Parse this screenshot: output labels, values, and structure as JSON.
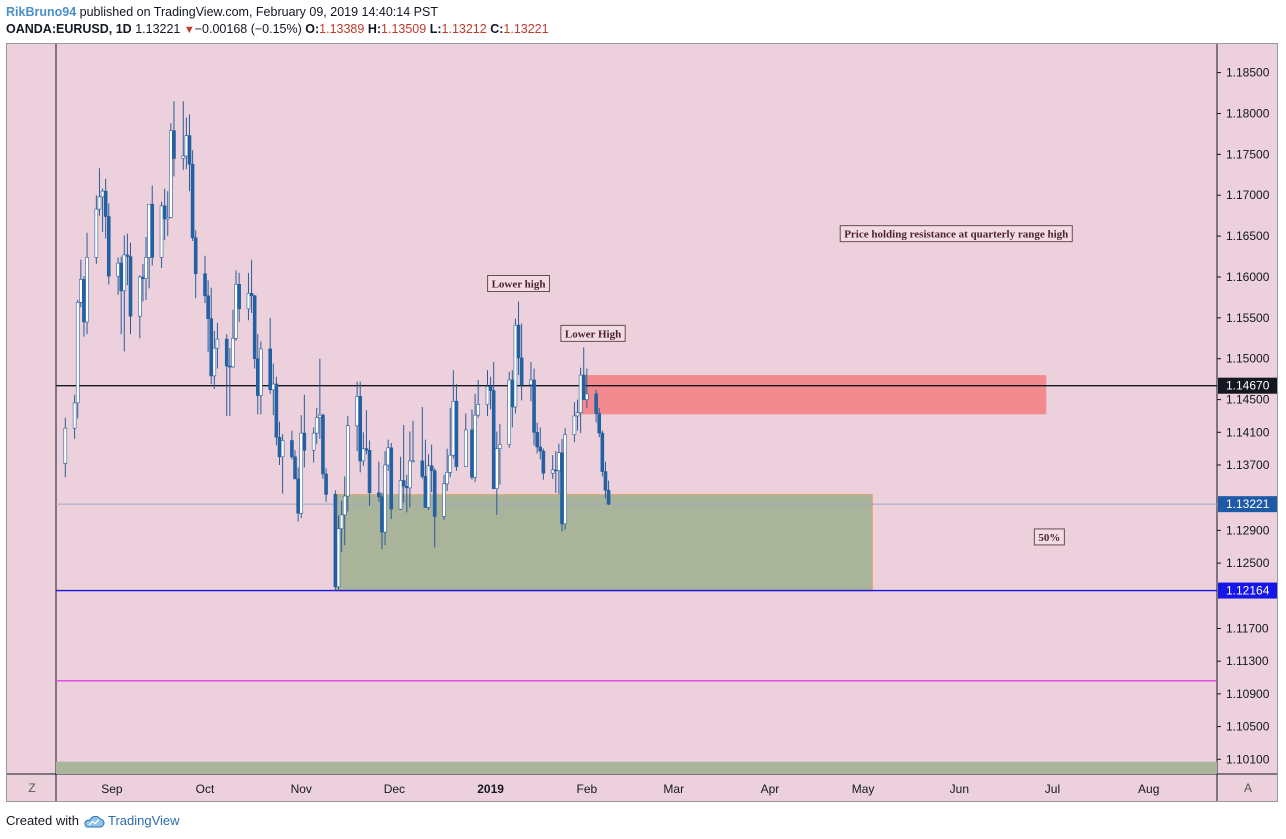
{
  "header": {
    "user": "RikBruno94",
    "published": "published on TradingView.com, February 09, 2019 14:40:14 PST",
    "symbol": "OANDA:EURUSD, 1D",
    "last": "1.13221",
    "change": "−0.00168 (−0.15%)",
    "open_label": "O:",
    "open": "1.13389",
    "high_label": "H:",
    "high": "1.13509",
    "low_label": "L:",
    "low": "1.13212",
    "close_label": "C:",
    "close": "1.13221"
  },
  "footer": {
    "created_with": "Created with",
    "brand": "TradingView"
  },
  "buttons": {
    "z": "Z",
    "a": "A"
  },
  "colors": {
    "background": "#ecd1dc",
    "up_candle": "#ffffff",
    "down_candle": "#1f62a8",
    "wick": "#2a5d98",
    "resistance_zone": "#f28b8f",
    "range_zone": "#a9b49a",
    "blue_line": "#1616e8",
    "magenta_line": "#e040e0"
  },
  "chart_data": {
    "type": "candlestick",
    "x_axis_labels": [
      {
        "label": "Sep",
        "date": "2018-09-01"
      },
      {
        "label": "Oct",
        "date": "2018-10-01"
      },
      {
        "label": "Nov",
        "date": "2018-11-01"
      },
      {
        "label": "Dec",
        "date": "2018-12-01"
      },
      {
        "label": "2019",
        "date": "2019-01-01",
        "bold": true
      },
      {
        "label": "Feb",
        "date": "2019-02-01"
      },
      {
        "label": "Mar",
        "date": "2019-03-01"
      },
      {
        "label": "Apr",
        "date": "2019-04-01"
      },
      {
        "label": "May",
        "date": "2019-05-01"
      },
      {
        "label": "Jun",
        "date": "2019-06-01"
      },
      {
        "label": "Jul",
        "date": "2019-07-01"
      },
      {
        "label": "Aug",
        "date": "2019-08-01"
      }
    ],
    "x_range": [
      "2018-08-14",
      "2019-08-23"
    ],
    "y_range": [
      1.0992,
      1.1885
    ],
    "y_ticks": [
      "1.18500",
      "1.18000",
      "1.17500",
      "1.17000",
      "1.16500",
      "1.16000",
      "1.15500",
      "1.15000",
      "1.14500",
      "1.14100",
      "1.13700",
      "1.12900",
      "1.12500",
      "1.11700",
      "1.11300",
      "1.10900",
      "1.10500",
      "1.10100"
    ],
    "price_markers": [
      {
        "value": 1.1467,
        "label": "1.14670",
        "bg": "#131722",
        "fg": "#ffffff"
      },
      {
        "value": 1.13221,
        "label": "1.13221",
        "bg": "#1f5aa6",
        "fg": "#ffffff"
      },
      {
        "value": 1.12164,
        "label": "1.12164",
        "bg": "#1616e8",
        "fg": "#ffffff"
      }
    ],
    "horizontal_lines": [
      {
        "value": 1.1467,
        "color": "#131722"
      },
      {
        "value": 1.13221,
        "color": "#9fa6c4"
      },
      {
        "value": 1.12164,
        "color": "#1616e8"
      },
      {
        "value": 1.1106,
        "color": "#e040e0"
      }
    ],
    "zones": [
      {
        "from": "2019-01-30",
        "to": "2019-06-29",
        "top": 1.148,
        "bottom": 1.1432,
        "color": "#f28b8f"
      },
      {
        "from": "2018-11-12",
        "to": "2019-05-04",
        "top": 1.1334,
        "bottom": 1.1216,
        "color": "#a9b49a"
      },
      {
        "from": "2018-08-14",
        "to": "2019-08-23",
        "top": 1.1007,
        "bottom": 1.0992,
        "color": "#a9b49a"
      }
    ],
    "annotations": [
      {
        "text": "Lower high",
        "date": "2019-01-10",
        "price": 1.1592
      },
      {
        "text": "Lower High",
        "date": "2019-02-03",
        "price": 1.1531
      },
      {
        "text": "Price holding resistance at quarterly range high",
        "date": "2019-05-31",
        "price": 1.1653
      },
      {
        "text": "50%",
        "date": "2019-06-30",
        "price": 1.1282
      }
    ],
    "candles": [
      {
        "d": "2018-08-17",
        "o": 1.1372,
        "h": 1.1428,
        "l": 1.1355,
        "c": 1.1415
      },
      {
        "d": "2018-08-20",
        "o": 1.1415,
        "h": 1.1456,
        "l": 1.1402,
        "c": 1.1446
      },
      {
        "d": "2018-08-21",
        "o": 1.1446,
        "h": 1.1572,
        "l": 1.1427,
        "c": 1.1569
      },
      {
        "d": "2018-08-22",
        "o": 1.1569,
        "h": 1.1621,
        "l": 1.1563,
        "c": 1.1597
      },
      {
        "d": "2018-08-23",
        "o": 1.1597,
        "h": 1.1601,
        "l": 1.1527,
        "c": 1.1545
      },
      {
        "d": "2018-08-24",
        "o": 1.1545,
        "h": 1.1654,
        "l": 1.153,
        "c": 1.1624
      },
      {
        "d": "2018-08-27",
        "o": 1.1624,
        "h": 1.17,
        "l": 1.1616,
        "c": 1.1683
      },
      {
        "d": "2018-08-28",
        "o": 1.1683,
        "h": 1.1733,
        "l": 1.1675,
        "c": 1.1698
      },
      {
        "d": "2018-08-29",
        "o": 1.1698,
        "h": 1.1708,
        "l": 1.1655,
        "c": 1.1705
      },
      {
        "d": "2018-08-30",
        "o": 1.1705,
        "h": 1.172,
        "l": 1.1647,
        "c": 1.1674
      },
      {
        "d": "2018-08-31",
        "o": 1.1674,
        "h": 1.169,
        "l": 1.1591,
        "c": 1.1601
      },
      {
        "d": "2018-09-03",
        "o": 1.1601,
        "h": 1.1624,
        "l": 1.1578,
        "c": 1.1617
      },
      {
        "d": "2018-09-04",
        "o": 1.1617,
        "h": 1.1625,
        "l": 1.153,
        "c": 1.1583
      },
      {
        "d": "2018-09-05",
        "o": 1.1583,
        "h": 1.1651,
        "l": 1.1509,
        "c": 1.1627
      },
      {
        "d": "2018-09-06",
        "o": 1.1627,
        "h": 1.1653,
        "l": 1.159,
        "c": 1.1625
      },
      {
        "d": "2018-09-07",
        "o": 1.1625,
        "h": 1.1642,
        "l": 1.153,
        "c": 1.1552
      },
      {
        "d": "2018-09-10",
        "o": 1.1552,
        "h": 1.1602,
        "l": 1.1525,
        "c": 1.16
      },
      {
        "d": "2018-09-11",
        "o": 1.16,
        "h": 1.1616,
        "l": 1.157,
        "c": 1.1598
      },
      {
        "d": "2018-09-12",
        "o": 1.1598,
        "h": 1.1649,
        "l": 1.1572,
        "c": 1.1624
      },
      {
        "d": "2018-09-13",
        "o": 1.1624,
        "h": 1.1689,
        "l": 1.1586,
        "c": 1.1689
      },
      {
        "d": "2018-09-14",
        "o": 1.1689,
        "h": 1.1712,
        "l": 1.1614,
        "c": 1.1624
      },
      {
        "d": "2018-09-17",
        "o": 1.1624,
        "h": 1.1692,
        "l": 1.1611,
        "c": 1.1687
      },
      {
        "d": "2018-09-18",
        "o": 1.1687,
        "h": 1.1708,
        "l": 1.1645,
        "c": 1.1671
      },
      {
        "d": "2018-09-19",
        "o": 1.1671,
        "h": 1.1705,
        "l": 1.165,
        "c": 1.1673
      },
      {
        "d": "2018-09-20",
        "o": 1.1673,
        "h": 1.1788,
        "l": 1.1672,
        "c": 1.1779
      },
      {
        "d": "2018-09-21",
        "o": 1.1779,
        "h": 1.1815,
        "l": 1.1723,
        "c": 1.1745
      },
      {
        "d": "2018-09-24",
        "o": 1.1745,
        "h": 1.1815,
        "l": 1.1731,
        "c": 1.1748
      },
      {
        "d": "2018-09-25",
        "o": 1.1748,
        "h": 1.1795,
        "l": 1.1732,
        "c": 1.1773
      },
      {
        "d": "2018-09-26",
        "o": 1.1773,
        "h": 1.1799,
        "l": 1.1705,
        "c": 1.1738
      },
      {
        "d": "2018-09-27",
        "o": 1.1738,
        "h": 1.1755,
        "l": 1.1644,
        "c": 1.1648
      },
      {
        "d": "2018-09-28",
        "o": 1.1648,
        "h": 1.1657,
        "l": 1.1574,
        "c": 1.1604
      },
      {
        "d": "2018-10-01",
        "o": 1.1604,
        "h": 1.1626,
        "l": 1.1568,
        "c": 1.1577
      },
      {
        "d": "2018-10-02",
        "o": 1.1577,
        "h": 1.1596,
        "l": 1.1508,
        "c": 1.1549
      },
      {
        "d": "2018-10-03",
        "o": 1.1549,
        "h": 1.1587,
        "l": 1.1469,
        "c": 1.1479
      },
      {
        "d": "2018-10-04",
        "o": 1.1479,
        "h": 1.1534,
        "l": 1.1463,
        "c": 1.1513
      },
      {
        "d": "2018-10-05",
        "o": 1.1513,
        "h": 1.1544,
        "l": 1.1488,
        "c": 1.1524
      },
      {
        "d": "2018-10-08",
        "o": 1.1524,
        "h": 1.153,
        "l": 1.143,
        "c": 1.1491
      },
      {
        "d": "2018-10-09",
        "o": 1.1491,
        "h": 1.1513,
        "l": 1.143,
        "c": 1.149
      },
      {
        "d": "2018-10-10",
        "o": 1.149,
        "h": 1.156,
        "l": 1.1489,
        "c": 1.1525
      },
      {
        "d": "2018-10-11",
        "o": 1.1525,
        "h": 1.1608,
        "l": 1.1522,
        "c": 1.1591
      },
      {
        "d": "2018-10-12",
        "o": 1.1591,
        "h": 1.1605,
        "l": 1.1545,
        "c": 1.1561
      },
      {
        "d": "2018-10-15",
        "o": 1.1561,
        "h": 1.1605,
        "l": 1.1547,
        "c": 1.158
      },
      {
        "d": "2018-10-16",
        "o": 1.158,
        "h": 1.1621,
        "l": 1.1556,
        "c": 1.1577
      },
      {
        "d": "2018-10-17",
        "o": 1.1577,
        "h": 1.1578,
        "l": 1.1488,
        "c": 1.15
      },
      {
        "d": "2018-10-18",
        "o": 1.15,
        "h": 1.153,
        "l": 1.1432,
        "c": 1.1455
      },
      {
        "d": "2018-10-19",
        "o": 1.1455,
        "h": 1.1521,
        "l": 1.1432,
        "c": 1.1512
      },
      {
        "d": "2018-10-22",
        "o": 1.1512,
        "h": 1.155,
        "l": 1.1457,
        "c": 1.1462
      },
      {
        "d": "2018-10-23",
        "o": 1.1462,
        "h": 1.1494,
        "l": 1.1431,
        "c": 1.1469
      },
      {
        "d": "2018-10-24",
        "o": 1.1469,
        "h": 1.1478,
        "l": 1.1394,
        "c": 1.1404
      },
      {
        "d": "2018-10-25",
        "o": 1.1404,
        "h": 1.1423,
        "l": 1.137,
        "c": 1.138
      },
      {
        "d": "2018-10-26",
        "o": 1.138,
        "h": 1.1408,
        "l": 1.1335,
        "c": 1.14
      },
      {
        "d": "2018-10-29",
        "o": 1.14,
        "h": 1.1412,
        "l": 1.1377,
        "c": 1.138
      },
      {
        "d": "2018-10-30",
        "o": 1.138,
        "h": 1.1388,
        "l": 1.1355,
        "c": 1.1353
      },
      {
        "d": "2018-10-31",
        "o": 1.1353,
        "h": 1.1367,
        "l": 1.1301,
        "c": 1.1311
      },
      {
        "d": "2018-11-01",
        "o": 1.1311,
        "h": 1.1431,
        "l": 1.1305,
        "c": 1.1409
      },
      {
        "d": "2018-11-02",
        "o": 1.1409,
        "h": 1.1456,
        "l": 1.1367,
        "c": 1.1388
      },
      {
        "d": "2018-11-05",
        "o": 1.1388,
        "h": 1.1416,
        "l": 1.1373,
        "c": 1.1409
      },
      {
        "d": "2018-11-06",
        "o": 1.1409,
        "h": 1.144,
        "l": 1.1396,
        "c": 1.1428
      },
      {
        "d": "2018-11-07",
        "o": 1.1428,
        "h": 1.15,
        "l": 1.1402,
        "c": 1.1431
      },
      {
        "d": "2018-11-08",
        "o": 1.1431,
        "h": 1.1433,
        "l": 1.1353,
        "c": 1.1359
      },
      {
        "d": "2018-11-09",
        "o": 1.1359,
        "h": 1.1366,
        "l": 1.1325,
        "c": 1.1334
      },
      {
        "d": "2018-11-12",
        "o": 1.1334,
        "h": 1.1339,
        "l": 1.1216,
        "c": 1.1221
      },
      {
        "d": "2018-11-13",
        "o": 1.1221,
        "h": 1.1308,
        "l": 1.1216,
        "c": 1.1292
      },
      {
        "d": "2018-11-14",
        "o": 1.1292,
        "h": 1.1326,
        "l": 1.1264,
        "c": 1.1309
      },
      {
        "d": "2018-11-15",
        "o": 1.1309,
        "h": 1.1356,
        "l": 1.1272,
        "c": 1.1332
      },
      {
        "d": "2018-11-16",
        "o": 1.1332,
        "h": 1.143,
        "l": 1.1313,
        "c": 1.1418
      },
      {
        "d": "2018-11-19",
        "o": 1.1418,
        "h": 1.1472,
        "l": 1.1387,
        "c": 1.1454
      },
      {
        "d": "2018-11-20",
        "o": 1.1454,
        "h": 1.1472,
        "l": 1.1361,
        "c": 1.1375
      },
      {
        "d": "2018-11-21",
        "o": 1.1375,
        "h": 1.141,
        "l": 1.1369,
        "c": 1.139
      },
      {
        "d": "2018-11-22",
        "o": 1.139,
        "h": 1.1437,
        "l": 1.1383,
        "c": 1.1388
      },
      {
        "d": "2018-11-23",
        "o": 1.1388,
        "h": 1.14,
        "l": 1.132,
        "c": 1.1336
      },
      {
        "d": "2018-11-26",
        "o": 1.1336,
        "h": 1.1374,
        "l": 1.1325,
        "c": 1.1331
      },
      {
        "d": "2018-11-27",
        "o": 1.1331,
        "h": 1.1336,
        "l": 1.1267,
        "c": 1.1288
      },
      {
        "d": "2018-11-28",
        "o": 1.1288,
        "h": 1.1387,
        "l": 1.1272,
        "c": 1.137
      },
      {
        "d": "2018-11-29",
        "o": 1.137,
        "h": 1.1401,
        "l": 1.1363,
        "c": 1.1391
      },
      {
        "d": "2018-11-30",
        "o": 1.1391,
        "h": 1.1397,
        "l": 1.1304,
        "c": 1.1316
      },
      {
        "d": "2018-12-03",
        "o": 1.1316,
        "h": 1.138,
        "l": 1.1315,
        "c": 1.1351
      },
      {
        "d": "2018-12-04",
        "o": 1.1351,
        "h": 1.1419,
        "l": 1.1324,
        "c": 1.1344
      },
      {
        "d": "2018-12-05",
        "o": 1.1344,
        "h": 1.1358,
        "l": 1.1312,
        "c": 1.1342
      },
      {
        "d": "2018-12-06",
        "o": 1.1342,
        "h": 1.1411,
        "l": 1.1318,
        "c": 1.1375
      },
      {
        "d": "2018-12-07",
        "o": 1.1375,
        "h": 1.1424,
        "l": 1.1375,
        "c": 1.1375
      },
      {
        "d": "2018-12-10",
        "o": 1.1375,
        "h": 1.1441,
        "l": 1.1353,
        "c": 1.1356
      },
      {
        "d": "2018-12-11",
        "o": 1.1356,
        "h": 1.1401,
        "l": 1.132,
        "c": 1.1318
      },
      {
        "d": "2018-12-12",
        "o": 1.1318,
        "h": 1.1383,
        "l": 1.1315,
        "c": 1.1369
      },
      {
        "d": "2018-12-13",
        "o": 1.1369,
        "h": 1.1395,
        "l": 1.1337,
        "c": 1.1363
      },
      {
        "d": "2018-12-14",
        "o": 1.1363,
        "h": 1.1366,
        "l": 1.1269,
        "c": 1.1307
      },
      {
        "d": "2018-12-17",
        "o": 1.1307,
        "h": 1.1358,
        "l": 1.1303,
        "c": 1.1347
      },
      {
        "d": "2018-12-18",
        "o": 1.1347,
        "h": 1.139,
        "l": 1.1338,
        "c": 1.1361
      },
      {
        "d": "2018-12-19",
        "o": 1.1361,
        "h": 1.144,
        "l": 1.1355,
        "c": 1.1382
      },
      {
        "d": "2018-12-20",
        "o": 1.1382,
        "h": 1.1486,
        "l": 1.1378,
        "c": 1.1448
      },
      {
        "d": "2018-12-21",
        "o": 1.1448,
        "h": 1.1469,
        "l": 1.1363,
        "c": 1.1368
      },
      {
        "d": "2018-12-24",
        "o": 1.1368,
        "h": 1.1433,
        "l": 1.1368,
        "c": 1.1413
      },
      {
        "d": "2018-12-26",
        "o": 1.1413,
        "h": 1.1438,
        "l": 1.1352,
        "c": 1.1355
      },
      {
        "d": "2018-12-27",
        "o": 1.1355,
        "h": 1.1457,
        "l": 1.1349,
        "c": 1.1431
      },
      {
        "d": "2018-12-28",
        "o": 1.1431,
        "h": 1.1474,
        "l": 1.1428,
        "c": 1.1444
      },
      {
        "d": "2018-12-31",
        "o": 1.1444,
        "h": 1.1486,
        "l": 1.143,
        "c": 1.1466
      },
      {
        "d": "2019-01-01",
        "o": 1.1466,
        "h": 1.1478,
        "l": 1.1438,
        "c": 1.1461
      },
      {
        "d": "2019-01-02",
        "o": 1.1461,
        "h": 1.1496,
        "l": 1.1345,
        "c": 1.1341
      },
      {
        "d": "2019-01-03",
        "o": 1.1341,
        "h": 1.1411,
        "l": 1.1309,
        "c": 1.139
      },
      {
        "d": "2019-01-04",
        "o": 1.139,
        "h": 1.142,
        "l": 1.1346,
        "c": 1.1395
      },
      {
        "d": "2019-01-07",
        "o": 1.1395,
        "h": 1.1484,
        "l": 1.1391,
        "c": 1.1474
      },
      {
        "d": "2019-01-08",
        "o": 1.1474,
        "h": 1.1486,
        "l": 1.1416,
        "c": 1.1441
      },
      {
        "d": "2019-01-09",
        "o": 1.1441,
        "h": 1.1549,
        "l": 1.1433,
        "c": 1.1541
      },
      {
        "d": "2019-01-10",
        "o": 1.1541,
        "h": 1.157,
        "l": 1.148,
        "c": 1.1501
      },
      {
        "d": "2019-01-11",
        "o": 1.1501,
        "h": 1.1543,
        "l": 1.1449,
        "c": 1.1468
      },
      {
        "d": "2019-01-14",
        "o": 1.1468,
        "h": 1.1496,
        "l": 1.1448,
        "c": 1.1474
      },
      {
        "d": "2019-01-15",
        "o": 1.1474,
        "h": 1.1488,
        "l": 1.1394,
        "c": 1.141
      },
      {
        "d": "2019-01-16",
        "o": 1.141,
        "h": 1.1422,
        "l": 1.1384,
        "c": 1.1392
      },
      {
        "d": "2019-01-17",
        "o": 1.1392,
        "h": 1.1416,
        "l": 1.1377,
        "c": 1.1387
      },
      {
        "d": "2019-01-18",
        "o": 1.1387,
        "h": 1.139,
        "l": 1.1352,
        "c": 1.136
      },
      {
        "d": "2019-01-21",
        "o": 1.136,
        "h": 1.1382,
        "l": 1.1353,
        "c": 1.1364
      },
      {
        "d": "2019-01-22",
        "o": 1.1364,
        "h": 1.1387,
        "l": 1.1336,
        "c": 1.1363
      },
      {
        "d": "2019-01-23",
        "o": 1.1363,
        "h": 1.1396,
        "l": 1.1334,
        "c": 1.1385
      },
      {
        "d": "2019-01-24",
        "o": 1.1385,
        "h": 1.1402,
        "l": 1.1289,
        "c": 1.1298
      },
      {
        "d": "2019-01-25",
        "o": 1.1298,
        "h": 1.1415,
        "l": 1.1291,
        "c": 1.1407
      },
      {
        "d": "2019-01-28",
        "o": 1.1407,
        "h": 1.1447,
        "l": 1.1398,
        "c": 1.143
      },
      {
        "d": "2019-01-29",
        "o": 1.143,
        "h": 1.145,
        "l": 1.1412,
        "c": 1.1434
      },
      {
        "d": "2019-01-30",
        "o": 1.1434,
        "h": 1.1489,
        "l": 1.1409,
        "c": 1.148
      },
      {
        "d": "2019-01-31",
        "o": 1.148,
        "h": 1.1514,
        "l": 1.145,
        "c": 1.145
      },
      {
        "d": "2019-02-01",
        "o": 1.145,
        "h": 1.1488,
        "l": 1.144,
        "c": 1.1457
      },
      {
        "d": "2019-02-04",
        "o": 1.1457,
        "h": 1.1462,
        "l": 1.1422,
        "c": 1.1433
      },
      {
        "d": "2019-02-05",
        "o": 1.1433,
        "h": 1.144,
        "l": 1.1404,
        "c": 1.1409
      },
      {
        "d": "2019-02-06",
        "o": 1.1409,
        "h": 1.1412,
        "l": 1.1356,
        "c": 1.1362
      },
      {
        "d": "2019-02-07",
        "o": 1.1362,
        "h": 1.1374,
        "l": 1.1329,
        "c": 1.1339
      },
      {
        "d": "2019-02-08",
        "o": 1.1339,
        "h": 1.1351,
        "l": 1.1321,
        "c": 1.1322
      }
    ]
  }
}
